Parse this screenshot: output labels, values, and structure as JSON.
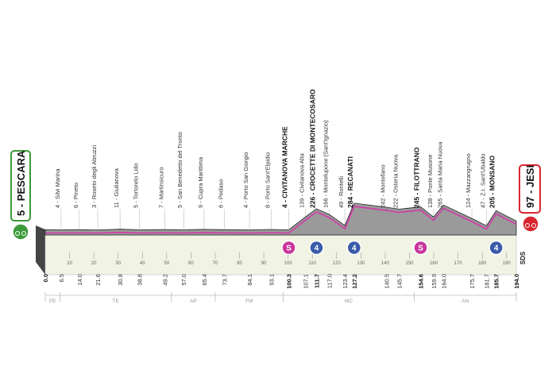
{
  "separator": " - ",
  "start": {
    "alt": 5,
    "name": "PESCARA",
    "km": {
      "value": 0,
      "label": "0.0"
    }
  },
  "finish": {
    "alt": 97,
    "name": "JESI",
    "km": {
      "value": 194,
      "label": "194.0"
    }
  },
  "waypoints": [
    {
      "alt": 4,
      "name": "Silvi Marina",
      "km": 6.5
    },
    {
      "alt": 6,
      "name": "Pineto",
      "km": {
        "value": 14,
        "label": "14.0"
      }
    },
    {
      "alt": 3,
      "name": "Roseto degli Abruzzi",
      "km": 21.6
    },
    {
      "alt": 11,
      "name": "Giulianova",
      "km": 30.8
    },
    {
      "alt": 5,
      "name": "Tortoreto Lido",
      "km": 38.8
    },
    {
      "alt": 7,
      "name": "Martinsicuro",
      "km": 49.2
    },
    {
      "alt": 5,
      "name": "San Benedetto del Tronto",
      "km": {
        "value": 57,
        "label": "57.0"
      }
    },
    {
      "alt": 9,
      "name": "Cupra Marittima",
      "km": 65.4
    },
    {
      "alt": 6,
      "name": "Pedaso",
      "km": 73.7
    },
    {
      "alt": 4,
      "name": "Porto San Giorgio",
      "km": 84.1
    },
    {
      "alt": 8,
      "name": "Porto Sant'Elpidio",
      "km": 93.1
    },
    {
      "alt": 4,
      "name": "CIVITANOVA MARCHE",
      "km": 100.3,
      "bold": true,
      "marker": {
        "symbol": "S",
        "color": "#c8359b"
      }
    },
    {
      "alt": 139,
      "name": "Civitanova Alta",
      "km": 107.1
    },
    {
      "alt": 226,
      "name": "CROCETTE DI MONTECOSARO",
      "km": 111.7,
      "bold": true,
      "marker": {
        "symbol": "4",
        "color": "#3a5ba9"
      }
    },
    {
      "alt": 166,
      "name": "Montelupone (Sant'Ignazio)",
      "km": {
        "value": 117,
        "label": "117.0"
      }
    },
    {
      "alt": 49,
      "name": "Rontelli",
      "km": 123.4
    },
    {
      "alt": 284,
      "name": "RECANATI",
      "km": 127.2,
      "bold": true,
      "marker": {
        "symbol": "4",
        "color": "#3a5ba9"
      }
    },
    {
      "alt": 242,
      "name": "Montefano",
      "km": 140.5
    },
    {
      "alt": 222,
      "name": "Osteria Nuova",
      "km": 145.7
    },
    {
      "alt": 245,
      "name": "FILOTTRANO",
      "km": 154.6,
      "bold": true,
      "marker": {
        "symbol": "S",
        "color": "#c8359b"
      }
    },
    {
      "alt": 138,
      "name": "Ponte Musone",
      "km": 159.9
    },
    {
      "alt": 265,
      "name": "Santa Maria Nuova",
      "km": {
        "value": 164,
        "label": "164.0"
      }
    },
    {
      "alt": 124,
      "name": "Mazzangrugno",
      "km": 175.7
    },
    {
      "alt": 47,
      "name": "Z.I. Sant'Ubaldo",
      "km": 181.7
    },
    {
      "alt": 205,
      "name": "MONSANO",
      "km": 185.7,
      "bold": true,
      "marker": {
        "symbol": "4",
        "color": "#3a5ba9"
      }
    }
  ],
  "km_ticks": [
    10,
    20,
    30,
    40,
    50,
    60,
    70,
    80,
    90,
    100,
    110,
    120,
    130,
    140,
    150,
    160,
    170,
    180,
    190
  ],
  "provinces": [
    {
      "code": "PE",
      "from": 0,
      "to": 6
    },
    {
      "code": "TE",
      "from": 6,
      "to": 52
    },
    {
      "code": "AP",
      "from": 52,
      "to": 70
    },
    {
      "code": "FM",
      "from": 70,
      "to": 98
    },
    {
      "code": "MC",
      "from": 98,
      "to": 152
    },
    {
      "code": "AN",
      "from": 152,
      "to": 194
    }
  ],
  "logo": "SDS"
}
